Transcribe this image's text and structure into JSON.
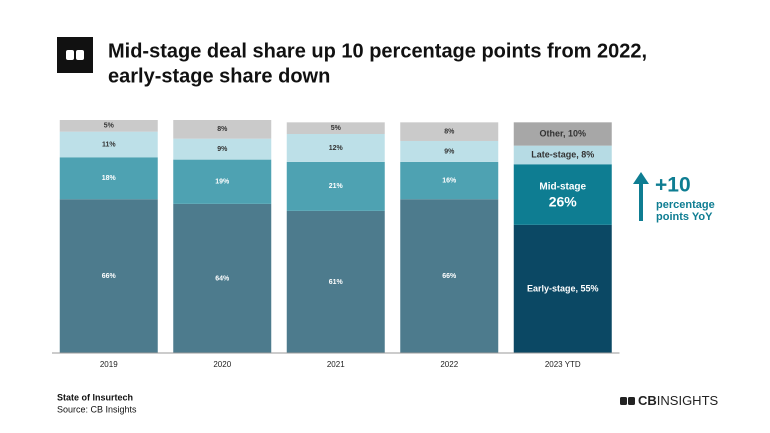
{
  "chart_data": {
    "type": "stacked_bar",
    "title": [
      "Mid-stage deal share up 10 percentage points from 2022,",
      "early-stage share down"
    ],
    "categories": [
      "2019",
      "2020",
      "2021",
      "2022",
      "2023 YTD"
    ],
    "ylim": [
      0,
      100
    ],
    "series": [
      {
        "colors": [
          "#4d7b8d",
          "#4d7b8d",
          "#4d7b8d",
          "#4d7b8d",
          "#0b4864"
        ],
        "values": [
          66,
          64,
          61,
          66,
          55
        ],
        "value_labels": [
          "66%",
          "64%",
          "61%",
          "66%",
          "Early-stage, 55%"
        ]
      },
      {
        "colors": [
          "#4ea2b2",
          "#4ea2b2",
          "#4ea2b2",
          "#4ea2b2",
          "#0e7d92"
        ],
        "values": [
          18,
          19,
          21,
          16,
          26
        ],
        "value_labels": [
          "18%",
          "19%",
          "21%",
          "16%",
          "Mid-stage\n26%"
        ]
      },
      {
        "colors": [
          "#bde0e8",
          "#bde0e8",
          "#bde0e8",
          "#bde0e8",
          "#b6dbe4"
        ],
        "values": [
          11,
          9,
          12,
          9,
          8
        ],
        "value_labels": [
          "11%",
          "9%",
          "12%",
          "9%",
          "Late-stage, 8%"
        ]
      },
      {
        "colors": [
          "#cacaca",
          "#cacaca",
          "#cacaca",
          "#cacaca",
          "#a7a7a7"
        ],
        "values": [
          5,
          8,
          5,
          8,
          10
        ],
        "value_labels": [
          "5%",
          "8%",
          "5%",
          "8%",
          "Other, 10%"
        ]
      }
    ],
    "annotation": {
      "big": "+10",
      "lines": [
        "percentage",
        "points YoY"
      ]
    },
    "footer": {
      "report": "State of Insurtech",
      "source": "Source: CB Insights"
    },
    "logo": {
      "bold": "CB",
      "rest": "INSIGHTS"
    }
  }
}
